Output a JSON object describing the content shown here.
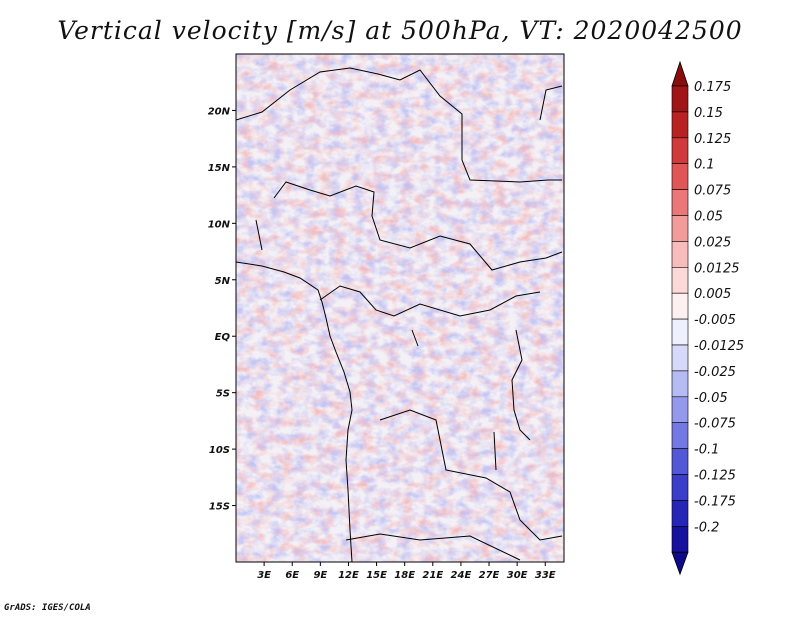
{
  "title": "Vertical velocity [m/s] at 500hPa, VT: 2020042500",
  "credit": "GrADS: IGES/COLA",
  "map": {
    "lon_range": [
      0,
      35
    ],
    "lat_range": [
      -20,
      25
    ],
    "lat_ticks": [
      {
        "value": 20,
        "label": "20N"
      },
      {
        "value": 15,
        "label": "15N"
      },
      {
        "value": 10,
        "label": "10N"
      },
      {
        "value": 5,
        "label": "5N"
      },
      {
        "value": 0,
        "label": "EQ"
      },
      {
        "value": -5,
        "label": "5S"
      },
      {
        "value": -10,
        "label": "10S"
      },
      {
        "value": -15,
        "label": "15S"
      }
    ],
    "lon_ticks": [
      {
        "value": 3,
        "label": "3E"
      },
      {
        "value": 6,
        "label": "6E"
      },
      {
        "value": 9,
        "label": "9E"
      },
      {
        "value": 12,
        "label": "12E"
      },
      {
        "value": 15,
        "label": "15E"
      },
      {
        "value": 18,
        "label": "18E"
      },
      {
        "value": 21,
        "label": "21E"
      },
      {
        "value": 24,
        "label": "24E"
      },
      {
        "value": 27,
        "label": "27E"
      },
      {
        "value": 30,
        "label": "30E"
      },
      {
        "value": 33,
        "label": "33E"
      }
    ]
  },
  "colorbar": {
    "levels": [
      {
        "label": "0.175",
        "color": "#a01616"
      },
      {
        "label": "0.15",
        "color": "#b82222"
      },
      {
        "label": "0.125",
        "color": "#cf3a3a"
      },
      {
        "label": "0.1",
        "color": "#e05555"
      },
      {
        "label": "0.075",
        "color": "#eb7878"
      },
      {
        "label": "0.05",
        "color": "#f29b9b"
      },
      {
        "label": "0.025",
        "color": "#f8bcbc"
      },
      {
        "label": "0.0125",
        "color": "#fbd9d9"
      },
      {
        "label": "0.005",
        "color": "#fdf0f0"
      },
      {
        "label": "-0.005",
        "color": "#eef0fd"
      },
      {
        "label": "-0.0125",
        "color": "#d6d9f9"
      },
      {
        "label": "-0.025",
        "color": "#b7bbf4"
      },
      {
        "label": "-0.05",
        "color": "#9499ec"
      },
      {
        "label": "-0.075",
        "color": "#7378e2"
      },
      {
        "label": "-0.1",
        "color": "#5358d6"
      },
      {
        "label": "-0.125",
        "color": "#3a3ec8"
      },
      {
        "label": "-0.175",
        "color": "#2526b6"
      },
      {
        "label": "-0.2",
        "color": "#16129e"
      }
    ],
    "top_arrow_color": "#8a0d0d",
    "bottom_arrow_color": "#0c0a8a"
  }
}
